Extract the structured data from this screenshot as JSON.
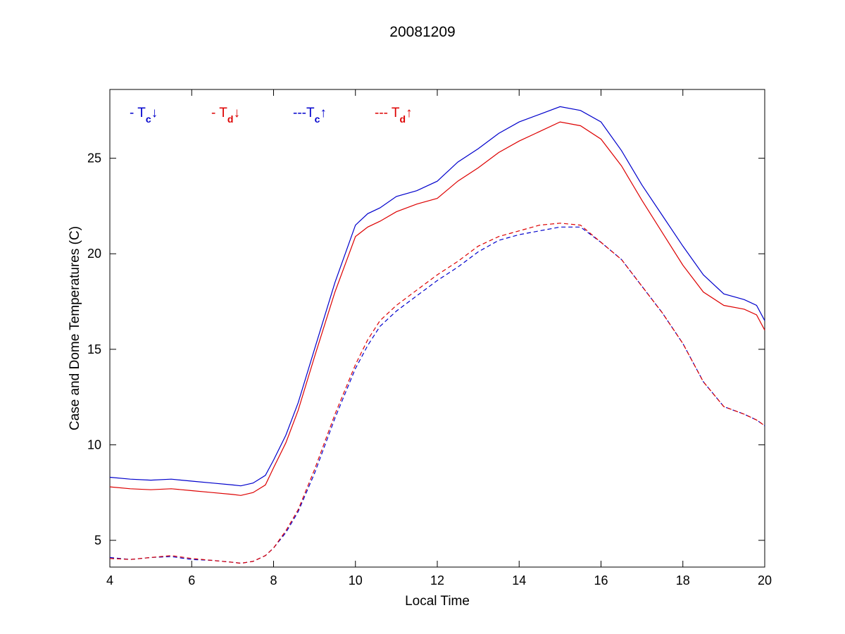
{
  "chart_data": {
    "type": "line",
    "title": "20081209",
    "xlabel": "Local Time",
    "ylabel": "Case and Dome Temperatures (C)",
    "xlim": [
      4,
      20
    ],
    "ylim": [
      3.6,
      28.6
    ],
    "xticks": [
      4,
      6,
      8,
      10,
      12,
      14,
      16,
      18,
      20
    ],
    "yticks": [
      5,
      10,
      15,
      20,
      25
    ],
    "grid": false,
    "legend_placement": "top-left, inside plot, single row",
    "series": [
      {
        "name": "- Tc↓",
        "color": "#0000cc",
        "dash": "solid",
        "legend": {
          "prefix": "- T",
          "sub": "c",
          "arrow": "↓"
        },
        "x": [
          4,
          4.5,
          5,
          5.5,
          6,
          6.5,
          7,
          7.2,
          7.5,
          7.8,
          8,
          8.3,
          8.6,
          9,
          9.5,
          10,
          10.3,
          10.6,
          11,
          11.5,
          12,
          12.5,
          13,
          13.5,
          14,
          14.5,
          15,
          15.5,
          16,
          16.5,
          17,
          17.5,
          18,
          18.5,
          19,
          19.5,
          19.8,
          20
        ],
        "y": [
          8.3,
          8.2,
          8.15,
          8.2,
          8.1,
          8.0,
          7.9,
          7.85,
          8.0,
          8.4,
          9.2,
          10.5,
          12.2,
          15.0,
          18.5,
          21.5,
          22.1,
          22.4,
          23.0,
          23.3,
          23.8,
          24.8,
          25.5,
          26.3,
          26.9,
          27.3,
          27.7,
          27.5,
          26.9,
          25.4,
          23.6,
          22.0,
          20.4,
          18.9,
          17.9,
          17.6,
          17.3,
          16.5
        ]
      },
      {
        "name": "- Td↓",
        "color": "#dd0000",
        "dash": "solid",
        "legend": {
          "prefix": "- T",
          "sub": "d",
          "arrow": "↓"
        },
        "x": [
          4,
          4.5,
          5,
          5.5,
          6,
          6.5,
          7,
          7.2,
          7.5,
          7.8,
          8,
          8.3,
          8.6,
          9,
          9.5,
          10,
          10.3,
          10.6,
          11,
          11.5,
          12,
          12.5,
          13,
          13.5,
          14,
          14.5,
          15,
          15.5,
          16,
          16.5,
          17,
          17.5,
          18,
          18.5,
          19,
          19.5,
          19.8,
          20
        ],
        "y": [
          7.8,
          7.7,
          7.65,
          7.7,
          7.6,
          7.5,
          7.4,
          7.35,
          7.5,
          7.9,
          8.8,
          10.1,
          11.8,
          14.6,
          18.0,
          20.9,
          21.4,
          21.7,
          22.2,
          22.6,
          22.9,
          23.8,
          24.5,
          25.3,
          25.9,
          26.4,
          26.9,
          26.7,
          26.0,
          24.6,
          22.8,
          21.1,
          19.4,
          18.0,
          17.3,
          17.1,
          16.8,
          16.0
        ]
      },
      {
        "name": "---Tc↑",
        "color": "#0000cc",
        "dash": "dashed",
        "legend": {
          "prefix": "---T",
          "sub": "c",
          "arrow": "↑"
        },
        "x": [
          4,
          4.5,
          5,
          5.5,
          6,
          6.5,
          7,
          7.2,
          7.5,
          7.8,
          8,
          8.3,
          8.6,
          9,
          9.5,
          10,
          10.3,
          10.6,
          11,
          11.5,
          12,
          12.5,
          13,
          13.5,
          14,
          14.5,
          15,
          15.5,
          16,
          16.5,
          17,
          17.5,
          18,
          18.5,
          19,
          19.5,
          19.8,
          20
        ],
        "y": [
          4.1,
          4.0,
          4.1,
          4.15,
          4.0,
          3.95,
          3.85,
          3.8,
          3.9,
          4.2,
          4.6,
          5.4,
          6.5,
          8.5,
          11.4,
          14.0,
          15.2,
          16.2,
          17.0,
          17.8,
          18.6,
          19.3,
          20.1,
          20.7,
          21.0,
          21.2,
          21.4,
          21.4,
          20.6,
          19.7,
          18.3,
          16.9,
          15.3,
          13.3,
          12.0,
          11.6,
          11.3,
          11.0
        ]
      },
      {
        "name": "--- Td↑",
        "color": "#dd0000",
        "dash": "dashed",
        "legend": {
          "prefix": "--- T",
          "sub": "d",
          "arrow": "↑"
        },
        "x": [
          4,
          4.5,
          5,
          5.5,
          6,
          6.5,
          7,
          7.2,
          7.5,
          7.8,
          8,
          8.3,
          8.6,
          9,
          9.5,
          10,
          10.3,
          10.6,
          11,
          11.5,
          12,
          12.5,
          13,
          13.5,
          14,
          14.5,
          15,
          15.5,
          16,
          16.5,
          17,
          17.5,
          18,
          18.5,
          19,
          19.5,
          19.8,
          20
        ],
        "y": [
          4.05,
          4.0,
          4.1,
          4.2,
          4.05,
          3.95,
          3.85,
          3.8,
          3.9,
          4.2,
          4.6,
          5.5,
          6.6,
          8.7,
          11.6,
          14.2,
          15.5,
          16.5,
          17.3,
          18.1,
          18.9,
          19.6,
          20.4,
          20.9,
          21.2,
          21.5,
          21.6,
          21.5,
          20.6,
          19.7,
          18.3,
          16.9,
          15.3,
          13.3,
          12.0,
          11.6,
          11.3,
          11.0
        ]
      }
    ]
  }
}
